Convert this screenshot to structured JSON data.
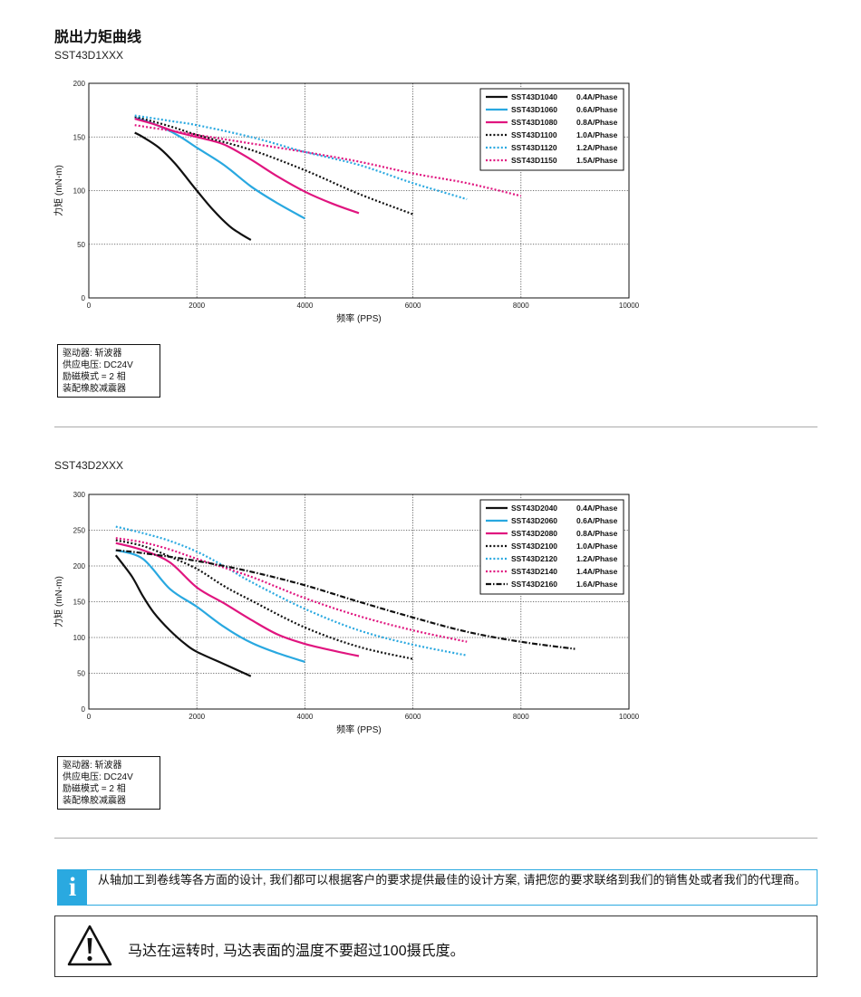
{
  "page": {
    "title": "脱出力矩曲线",
    "info_text": "从轴加工到卷线等各方面的设计, 我们都可以根据客户的要求提供最佳的设计方案, 请把您的要求联络到我们的销售处或者我们的代理商。",
    "warning_text": "马达在运转时, 马达表面的温度不要超过100摄氏度。"
  },
  "chart_data": [
    {
      "type": "line",
      "model": "SST43D1XXX",
      "xlabel": "频率 (PPS)",
      "ylabel": "力矩 (mN-m)",
      "xlim": [
        0,
        10000
      ],
      "ylim": [
        0,
        200
      ],
      "xticks": [
        0,
        2000,
        4000,
        6000,
        8000,
        10000
      ],
      "yticks": [
        0,
        50,
        100,
        150,
        200
      ],
      "grid": true,
      "legend_position": "top-right",
      "conditions": [
        "驱动器: 斩波器",
        "供应电压: DC24V",
        "励磁模式 = 2 相",
        "装配橡胶减震器"
      ],
      "series": [
        {
          "name": "SST43D1040",
          "current": "0.4A/Phase",
          "color": "#111111",
          "style": "solid",
          "x": [
            850,
            1000,
            1300,
            1600,
            2000,
            2300,
            2600,
            2800,
            3000
          ],
          "y": [
            154,
            150,
            140,
            125,
            100,
            82,
            67,
            60,
            54
          ]
        },
        {
          "name": "SST43D1060",
          "current": "0.6A/Phase",
          "color": "#29a8e0",
          "style": "solid",
          "x": [
            850,
            1100,
            1400,
            1700,
            2000,
            2500,
            3000,
            3500,
            4000
          ],
          "y": [
            168,
            164,
            158,
            150,
            140,
            124,
            104,
            88,
            74
          ]
        },
        {
          "name": "SST43D1080",
          "current": "0.8A/Phase",
          "color": "#e0157f",
          "style": "solid",
          "x": [
            850,
            1200,
            1600,
            2000,
            2500,
            3000,
            3500,
            4000,
            4500,
            5000
          ],
          "y": [
            167,
            162,
            155,
            150,
            143,
            129,
            113,
            99,
            88,
            79
          ]
        },
        {
          "name": "SST43D1100",
          "current": "1.0A/Phase",
          "color": "#111111",
          "style": "dotted",
          "x": [
            850,
            1500,
            2000,
            3000,
            4000,
            5000,
            6000
          ],
          "y": [
            169,
            160,
            152,
            138,
            119,
            97,
            78
          ]
        },
        {
          "name": "SST43D1120",
          "current": "1.2A/Phase",
          "color": "#29a8e0",
          "style": "dotted",
          "x": [
            850,
            1500,
            2000,
            3000,
            4000,
            5000,
            6000,
            7000
          ],
          "y": [
            170,
            165,
            161,
            150,
            136,
            124,
            107,
            92
          ]
        },
        {
          "name": "SST43D1150",
          "current": "1.5A/Phase",
          "color": "#e0157f",
          "style": "dotted",
          "x": [
            850,
            1500,
            2000,
            3000,
            4000,
            5000,
            6000,
            7000,
            8000
          ],
          "y": [
            161,
            156,
            152,
            144,
            136,
            127,
            116,
            107,
            95
          ]
        }
      ]
    },
    {
      "type": "line",
      "model": "SST43D2XXX",
      "xlabel": "频率 (PPS)",
      "ylabel": "力矩 (mN-m)",
      "xlim": [
        0,
        10000
      ],
      "ylim": [
        0,
        300
      ],
      "xticks": [
        0,
        2000,
        4000,
        6000,
        8000,
        10000
      ],
      "yticks": [
        0,
        50,
        100,
        150,
        200,
        250,
        300
      ],
      "grid": true,
      "legend_position": "top-right",
      "conditions": [
        "驱动器: 斩波器",
        "供应电压: DC24V",
        "励磁模式 = 2 相",
        "装配橡胶减震器"
      ],
      "series": [
        {
          "name": "SST43D2040",
          "current": "0.4A/Phase",
          "color": "#111111",
          "style": "solid",
          "x": [
            500,
            800,
            1000,
            1200,
            1500,
            1800,
            2000,
            2500,
            3000
          ],
          "y": [
            215,
            185,
            158,
            135,
            110,
            90,
            80,
            63,
            46
          ]
        },
        {
          "name": "SST43D2060",
          "current": "0.6A/Phase",
          "color": "#29a8e0",
          "style": "solid",
          "x": [
            500,
            1000,
            1500,
            2000,
            2500,
            3000,
            3500,
            4000
          ],
          "y": [
            222,
            210,
            168,
            143,
            115,
            93,
            78,
            66
          ]
        },
        {
          "name": "SST43D2080",
          "current": "0.8A/Phase",
          "color": "#e0157f",
          "style": "solid",
          "x": [
            500,
            1000,
            1500,
            2000,
            2500,
            3000,
            3500,
            4000,
            4500,
            5000
          ],
          "y": [
            232,
            222,
            205,
            170,
            148,
            125,
            104,
            91,
            82,
            74
          ]
        },
        {
          "name": "SST43D2100",
          "current": "1.0A/Phase",
          "color": "#111111",
          "style": "dotted",
          "x": [
            500,
            1000,
            1500,
            2000,
            2500,
            3000,
            4000,
            5000,
            6000
          ],
          "y": [
            236,
            228,
            213,
            196,
            172,
            152,
            114,
            87,
            70
          ]
        },
        {
          "name": "SST43D2120",
          "current": "1.2A/Phase",
          "color": "#29a8e0",
          "style": "dotted",
          "x": [
            500,
            1000,
            1500,
            2000,
            2500,
            3000,
            4000,
            5000,
            6000,
            7000
          ],
          "y": [
            255,
            246,
            235,
            220,
            200,
            178,
            140,
            110,
            90,
            75
          ]
        },
        {
          "name": "SST43D2140",
          "current": "1.4A/Phase",
          "color": "#e0157f",
          "style": "dotted",
          "x": [
            500,
            1000,
            1500,
            2000,
            3000,
            4000,
            5000,
            6000,
            7000
          ],
          "y": [
            239,
            233,
            223,
            210,
            185,
            155,
            130,
            110,
            94
          ]
        },
        {
          "name": "SST43D2160",
          "current": "1.6A/Phase",
          "color": "#111111",
          "style": "dashdot",
          "x": [
            500,
            1000,
            2000,
            3000,
            4000,
            5000,
            6000,
            7000,
            8000,
            9000
          ],
          "y": [
            222,
            218,
            207,
            192,
            173,
            150,
            128,
            108,
            94,
            84
          ]
        }
      ]
    }
  ]
}
